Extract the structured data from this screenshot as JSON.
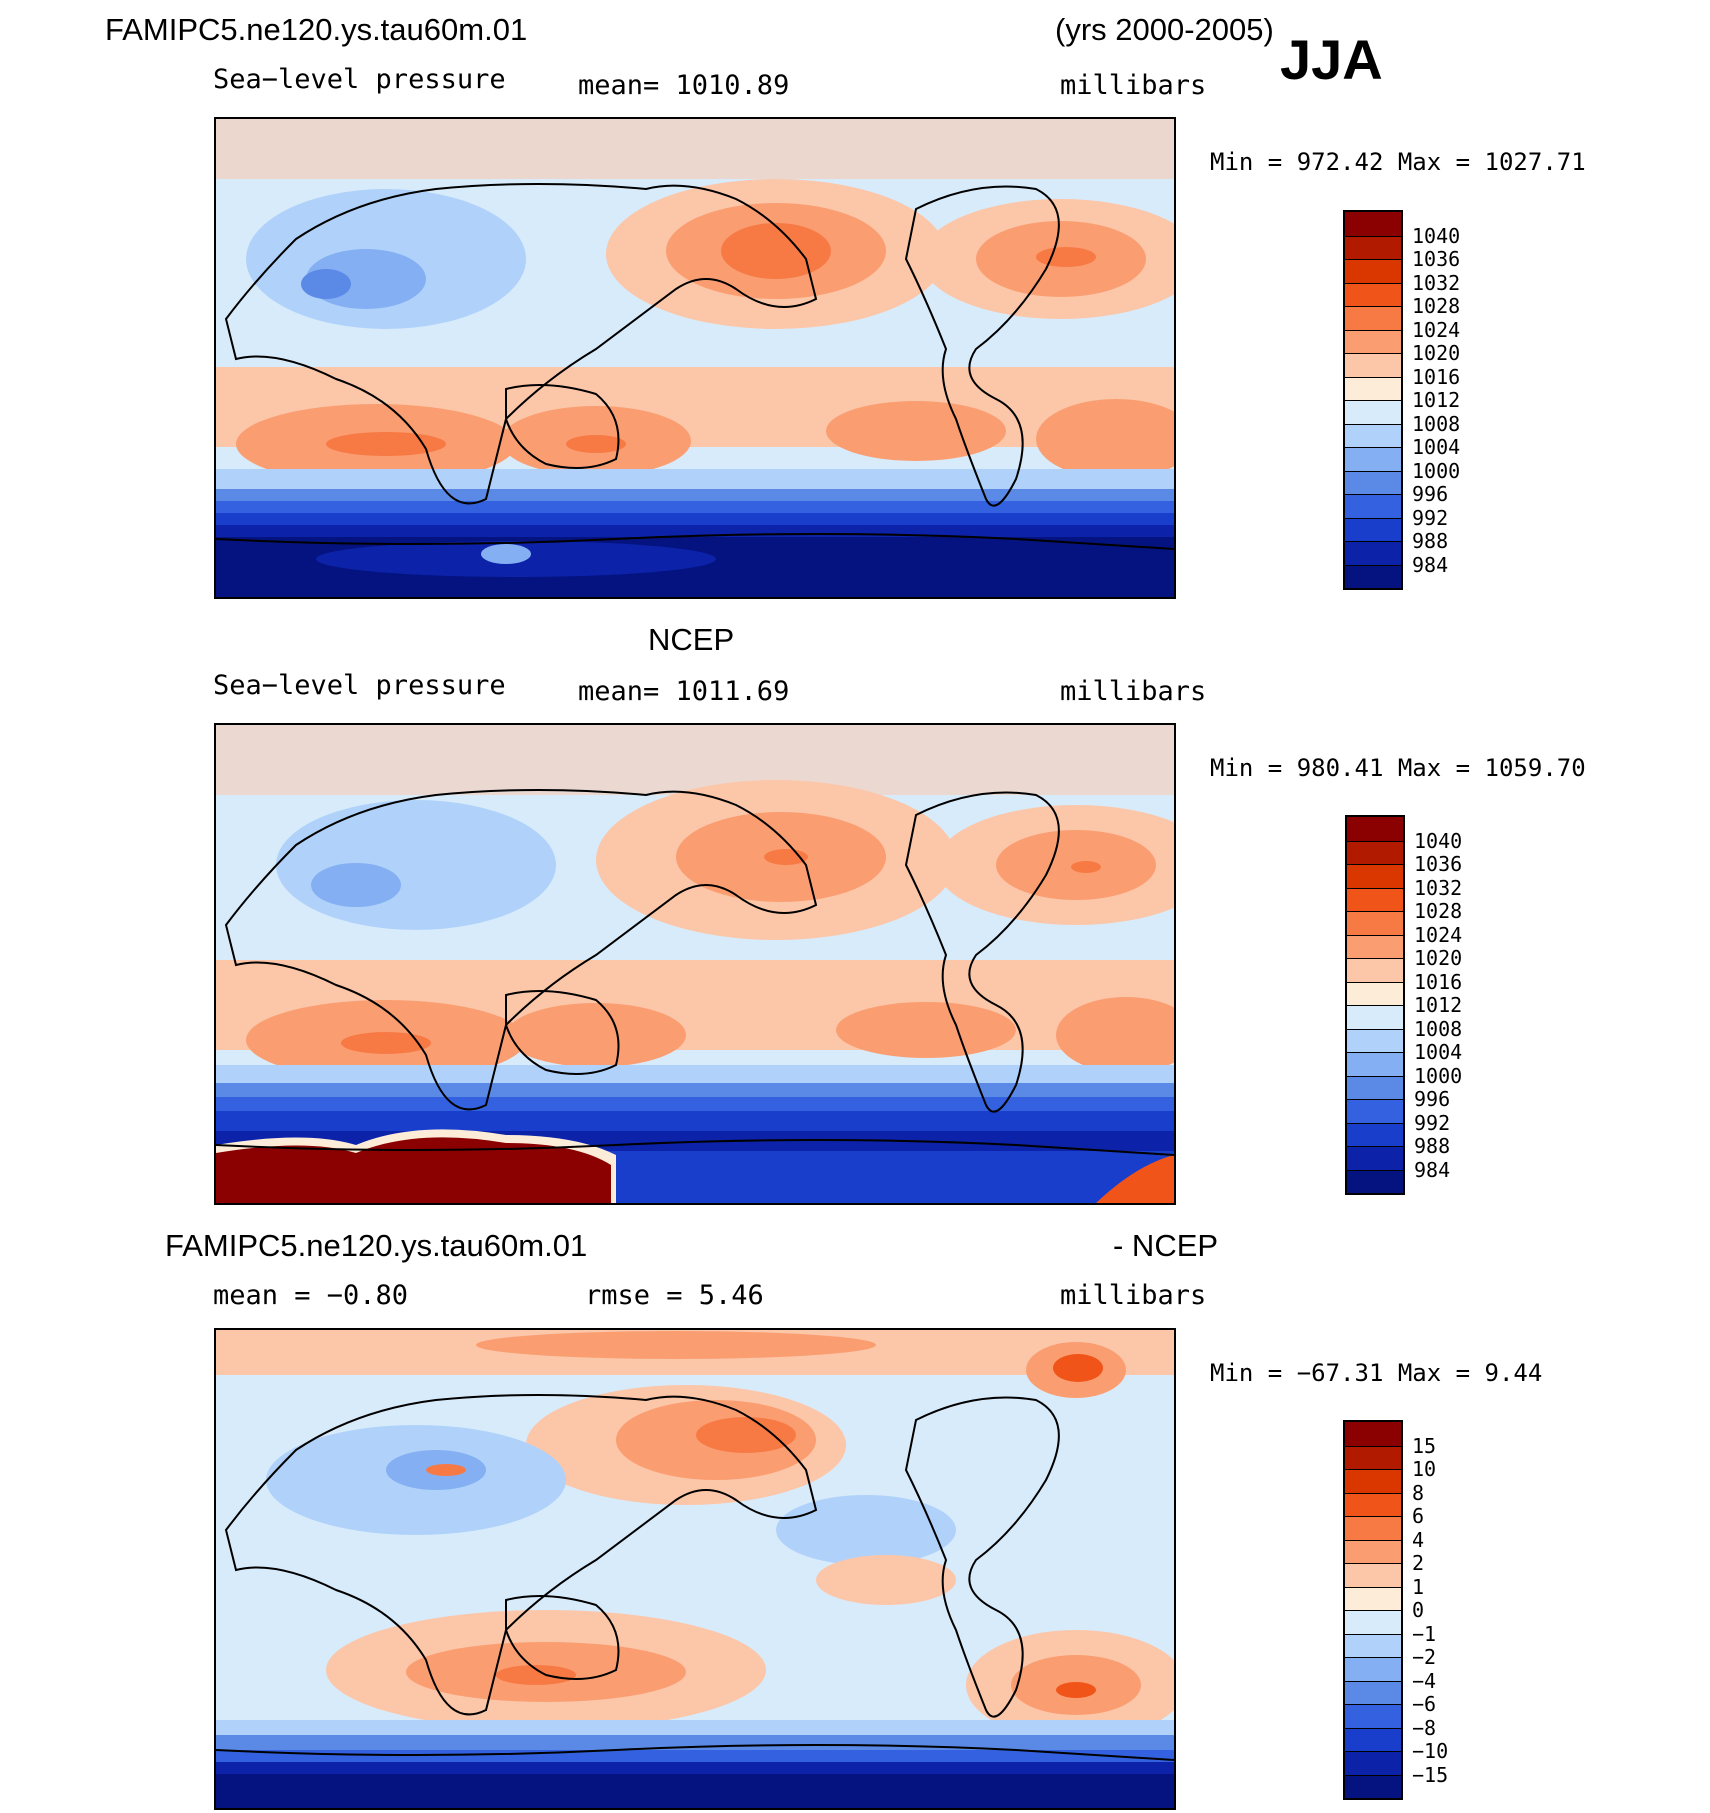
{
  "header": {
    "case": "FAMIPC5.ne120.ys.tau60m.01",
    "years": "(yrs 2000-2005)",
    "season": "JJA"
  },
  "panels": [
    {
      "variable": "Sea−level  pressure",
      "mean": "mean=  1010.89",
      "units": "millibars",
      "minmax": "Min  =  972.42  Max  =  1027.71"
    },
    {
      "title": "NCEP",
      "variable": "Sea−level  pressure",
      "mean": "mean=  1011.69",
      "units": "millibars",
      "minmax": "Min  =  980.41  Max  =  1059.70"
    },
    {
      "title_left": "FAMIPC5.ne120.ys.tau60m.01",
      "title_right": "- NCEP",
      "mean": "mean  =   −0.80",
      "rmse": "rmse  =     5.46",
      "units": "millibars",
      "minmax": "Min  =  −67.31  Max  =     9.44"
    }
  ],
  "colorbar_abs": {
    "labels": [
      "1040",
      "1036",
      "1032",
      "1028",
      "1024",
      "1020",
      "1016",
      "1012",
      "1008",
      "1004",
      "1000",
      "996",
      "992",
      "988",
      "984"
    ],
    "colors": [
      "#8b0000",
      "#b21a00",
      "#d93600",
      "#f05418",
      "#f77a45",
      "#fa9e72",
      "#fcc6a8",
      "#fdecd8",
      "#d8ebfb",
      "#b0d2fa",
      "#84aff3",
      "#5a8ae6",
      "#3361e0",
      "#1a3ecc",
      "#0c22a8",
      "#041380"
    ]
  },
  "colorbar_diff": {
    "labels": [
      "15",
      "10",
      "8",
      "6",
      "4",
      "2",
      "1",
      "0",
      "−1",
      "−2",
      "−4",
      "−6",
      "−8",
      "−10",
      "−15"
    ],
    "colors": [
      "#8b0000",
      "#b21a00",
      "#d93600",
      "#f05418",
      "#f77a45",
      "#fa9e72",
      "#fcc6a8",
      "#fdecd8",
      "#d8ebfb",
      "#b0d2fa",
      "#84aff3",
      "#5a8ae6",
      "#3361e0",
      "#1a3ecc",
      "#0c22a8",
      "#041380"
    ]
  }
}
